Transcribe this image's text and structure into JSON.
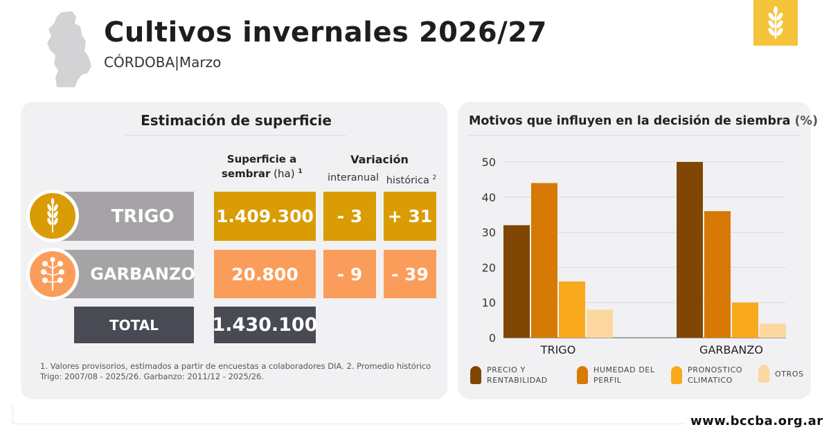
{
  "header": {
    "title": "Cultivos invernales 2026/27",
    "subtitle": "CÓRDOBA|Marzo"
  },
  "colors": {
    "trigo": "#d99c05",
    "garbanzo": "#fb9d5a",
    "label_gray": "#a6a3a6",
    "total_dark": "#484a54",
    "logo": "#f5c33a"
  },
  "table": {
    "title": "Estimación de superficie",
    "col_superficie": "Superficie a",
    "col_superficie2": "sembrar",
    "col_superficie_unit": "(ha)",
    "col_superficie_sup": "1",
    "col_variacion": "Variación",
    "col_interanual": "interanual",
    "col_historica": "histórica",
    "col_historica_sup": "2",
    "rows": [
      {
        "crop": "TRIGO",
        "superficie": "1.409.300",
        "interanual": "- 3",
        "historica": "+ 31",
        "icon": "wheat-icon"
      },
      {
        "crop": "GARBANZO",
        "superficie": "20.800",
        "interanual": "- 9",
        "historica": "- 39",
        "icon": "chickpea-plant-icon"
      }
    ],
    "total_label": "TOTAL",
    "total_value": "1.430.100",
    "note": "1. Valores provisorios, estimados a partir de encuestas a colaboradores DIA. 2. Promedio histórico Trigo: 2007/08 - 2025/26. Garbanzo: 2011/12 - 2025/26."
  },
  "chart_data": {
    "type": "bar",
    "title": "Motivos que influyen en la decisión de siembra",
    "title_unit": "(%)",
    "categories": [
      "TRIGO",
      "GARBANZO"
    ],
    "series": [
      {
        "name": "PRECIO Y RENTABILIDAD",
        "values": [
          32,
          50
        ],
        "color": "#7f4703"
      },
      {
        "name": "HUMEDAD DEL PERFIL",
        "values": [
          44,
          36
        ],
        "color": "#d67a05"
      },
      {
        "name": "PRONOSTICO CLIMATICO",
        "values": [
          16,
          10
        ],
        "color": "#f9a91c"
      },
      {
        "name": "OTROS",
        "values": [
          8,
          4
        ],
        "color": "#fcd7a0"
      }
    ],
    "ylim": [
      0,
      50
    ],
    "yticks": [
      0,
      10,
      20,
      30,
      40,
      50
    ],
    "grid": true,
    "legend_position": "bottom"
  },
  "footer": {
    "url": "www.bccba.org.ar"
  }
}
